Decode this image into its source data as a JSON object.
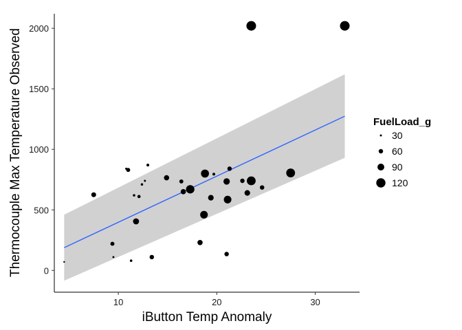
{
  "chart_data": {
    "type": "scatter",
    "title": "",
    "xlabel": "iButton Temp Anomaly",
    "ylabel": "Thermocouple Max Temperature Observed",
    "xlim": [
      3.5,
      34.5
    ],
    "ylim": [
      -180,
      2120
    ],
    "x_ticks": [
      10,
      20,
      30
    ],
    "y_ticks": [
      0,
      500,
      1000,
      1500,
      2000
    ],
    "grid": false,
    "size_legend": {
      "title": "FuelLoad_g",
      "position": "right",
      "entries": [
        30,
        60,
        90,
        120
      ]
    },
    "trend_line": {
      "color": "#3366ff",
      "x": [
        4.5,
        33.0
      ],
      "y": [
        188,
        1274
      ],
      "ci_upper": [
        460,
        1620
      ],
      "ci_lower": [
        -85,
        930
      ]
    },
    "points": [
      {
        "x": 4.5,
        "y": 70,
        "size": 25
      },
      {
        "x": 7.5,
        "y": 625,
        "size": 65
      },
      {
        "x": 9.4,
        "y": 220,
        "size": 55
      },
      {
        "x": 9.5,
        "y": 110,
        "size": 30
      },
      {
        "x": 10.8,
        "y": 840,
        "size": 30
      },
      {
        "x": 11.0,
        "y": 830,
        "size": 55
      },
      {
        "x": 11.3,
        "y": 80,
        "size": 35
      },
      {
        "x": 11.6,
        "y": 620,
        "size": 35
      },
      {
        "x": 11.8,
        "y": 405,
        "size": 80
      },
      {
        "x": 12.1,
        "y": 610,
        "size": 45
      },
      {
        "x": 12.4,
        "y": 710,
        "size": 35
      },
      {
        "x": 12.7,
        "y": 740,
        "size": 30
      },
      {
        "x": 13.0,
        "y": 870,
        "size": 40
      },
      {
        "x": 13.4,
        "y": 110,
        "size": 60
      },
      {
        "x": 14.9,
        "y": 765,
        "size": 70
      },
      {
        "x": 16.4,
        "y": 735,
        "size": 55
      },
      {
        "x": 16.6,
        "y": 650,
        "size": 70
      },
      {
        "x": 17.3,
        "y": 670,
        "size": 110
      },
      {
        "x": 18.3,
        "y": 230,
        "size": 70
      },
      {
        "x": 18.7,
        "y": 460,
        "size": 100
      },
      {
        "x": 18.8,
        "y": 800,
        "size": 105
      },
      {
        "x": 19.4,
        "y": 600,
        "size": 75
      },
      {
        "x": 19.7,
        "y": 795,
        "size": 40
      },
      {
        "x": 21.0,
        "y": 135,
        "size": 60
      },
      {
        "x": 21.0,
        "y": 735,
        "size": 85
      },
      {
        "x": 21.1,
        "y": 585,
        "size": 100
      },
      {
        "x": 21.3,
        "y": 840,
        "size": 60
      },
      {
        "x": 22.6,
        "y": 740,
        "size": 60
      },
      {
        "x": 23.1,
        "y": 640,
        "size": 75
      },
      {
        "x": 23.5,
        "y": 740,
        "size": 115
      },
      {
        "x": 23.5,
        "y": 2020,
        "size": 125
      },
      {
        "x": 24.6,
        "y": 685,
        "size": 60
      },
      {
        "x": 27.5,
        "y": 805,
        "size": 115
      },
      {
        "x": 33.0,
        "y": 2020,
        "size": 125
      }
    ]
  }
}
